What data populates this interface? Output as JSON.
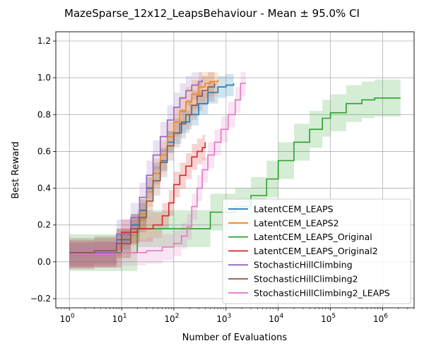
{
  "chart_data": {
    "type": "line",
    "title": "MazeSparse_12x12_LeapsBehaviour - Mean ± 95.0% CI",
    "xlabel": "Number of Evaluations",
    "ylabel": "Best Reward",
    "xscale": "log",
    "xlim": [
      0.55,
      4000000
    ],
    "ylim": [
      -0.25,
      1.25
    ],
    "grid": true,
    "legend_position": "lower-right",
    "yticks": [
      "−0.2",
      "0.0",
      "0.2",
      "0.4",
      "0.6",
      "0.8",
      "1.0",
      "1.2"
    ],
    "xticks": [
      {
        "base": "10",
        "exp": "0",
        "value": 1
      },
      {
        "base": "10",
        "exp": "1",
        "value": 10
      },
      {
        "base": "10",
        "exp": "2",
        "value": 100
      },
      {
        "base": "10",
        "exp": "3",
        "value": 1000
      },
      {
        "base": "10",
        "exp": "4",
        "value": 10000
      },
      {
        "base": "10",
        "exp": "5",
        "value": 100000
      },
      {
        "base": "10",
        "exp": "6",
        "value": 1000000
      }
    ],
    "series": [
      {
        "name": "LatentCEM_LEAPS",
        "color": "#1f77b4",
        "x": [
          1,
          3,
          8,
          15,
          22,
          30,
          40,
          55,
          75,
          100,
          140,
          200,
          300,
          450,
          700,
          1000,
          1400
        ],
        "y": [
          0.04,
          0.05,
          0.12,
          0.2,
          0.28,
          0.4,
          0.48,
          0.55,
          0.65,
          0.7,
          0.76,
          0.8,
          0.86,
          0.92,
          0.95,
          0.96,
          0.97
        ],
        "ci_width": 0.06
      },
      {
        "name": "LatentCEM_LEAPS2",
        "color": "#ff7f0e",
        "x": [
          1,
          3,
          8,
          15,
          22,
          30,
          40,
          55,
          75,
          100,
          130,
          170,
          220,
          300,
          400,
          500,
          700
        ],
        "y": [
          0.04,
          0.05,
          0.1,
          0.18,
          0.26,
          0.38,
          0.48,
          0.58,
          0.68,
          0.76,
          0.82,
          0.87,
          0.91,
          0.95,
          0.97,
          0.98,
          0.99
        ],
        "ci_width": 0.08
      },
      {
        "name": "LatentCEM_LEAPS_Original",
        "color": "#2ca02c",
        "x": [
          1,
          20,
          500,
          1500,
          3000,
          6000,
          10000,
          20000,
          40000,
          70000,
          100000,
          200000,
          400000,
          700000,
          1000000,
          2200000
        ],
        "y": [
          0.05,
          0.18,
          0.27,
          0.3,
          0.36,
          0.45,
          0.55,
          0.65,
          0.72,
          0.78,
          0.81,
          0.86,
          0.88,
          0.89,
          0.89,
          0.89
        ],
        "ci_width": 0.1
      },
      {
        "name": "LatentCEM_LEAPS_Original2",
        "color": "#d62728",
        "x": [
          1,
          10,
          20,
          40,
          60,
          80,
          100,
          130,
          170,
          220,
          280,
          350,
          400
        ],
        "y": [
          0.04,
          0.16,
          0.18,
          0.2,
          0.25,
          0.32,
          0.42,
          0.47,
          0.52,
          0.57,
          0.6,
          0.62,
          0.65
        ],
        "ci_width": 0.07
      },
      {
        "name": "StochasticHillClimbing",
        "color": "#9467bd",
        "x": [
          1,
          3,
          8,
          15,
          22,
          30,
          40,
          55,
          75,
          100,
          130,
          170,
          220,
          300,
          350
        ],
        "y": [
          0.04,
          0.05,
          0.15,
          0.24,
          0.35,
          0.47,
          0.58,
          0.68,
          0.77,
          0.84,
          0.89,
          0.93,
          0.96,
          0.98,
          0.99
        ],
        "ci_width": 0.08
      },
      {
        "name": "StochasticHillClimbing2",
        "color": "#8c564b",
        "x": [
          1,
          3,
          8,
          15,
          22,
          30,
          40,
          55,
          75,
          100,
          130,
          170,
          220,
          280,
          350,
          450,
          600
        ],
        "y": [
          0.05,
          0.06,
          0.1,
          0.18,
          0.24,
          0.33,
          0.44,
          0.54,
          0.63,
          0.7,
          0.75,
          0.8,
          0.85,
          0.9,
          0.93,
          0.95,
          0.97
        ],
        "ci_width": 0.08
      },
      {
        "name": "StochasticHillClimbing2_LEAPS",
        "color": "#e377c2",
        "x": [
          1,
          10,
          30,
          60,
          100,
          140,
          180,
          220,
          280,
          350,
          450,
          600,
          800,
          1100,
          1500,
          1900,
          2400
        ],
        "y": [
          0.04,
          0.05,
          0.06,
          0.08,
          0.1,
          0.14,
          0.19,
          0.3,
          0.4,
          0.5,
          0.58,
          0.65,
          0.72,
          0.8,
          0.88,
          0.97,
          0.97
        ],
        "ci_width": 0.07
      }
    ]
  }
}
